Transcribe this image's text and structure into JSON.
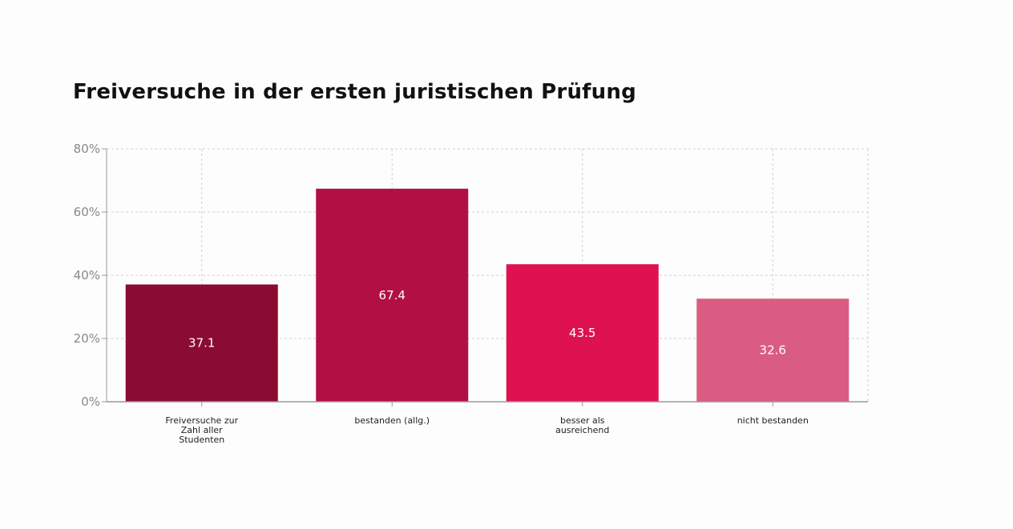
{
  "chart_data": {
    "type": "bar",
    "title": "Freiversuche in der ersten juristischen Prüfung",
    "categories": [
      [
        "Freiversuche zur",
        "Zahl aller",
        "Studenten"
      ],
      [
        "bestanden (allg.)"
      ],
      [
        "besser als",
        "ausreichend"
      ],
      [
        "nicht bestanden"
      ]
    ],
    "values": [
      37.1,
      67.4,
      43.5,
      32.6
    ],
    "value_labels": [
      "37.1",
      "67.4",
      "43.5",
      "32.6"
    ],
    "colors": [
      "#8b0c33",
      "#b21042",
      "#de1250",
      "#db5c82"
    ],
    "ylim": [
      0,
      80
    ],
    "yticks": [
      0,
      20,
      40,
      60,
      80
    ],
    "ytick_labels": [
      "0%",
      "20%",
      "40%",
      "60%",
      "80%"
    ],
    "grid": true,
    "xlabel": "",
    "ylabel": ""
  }
}
